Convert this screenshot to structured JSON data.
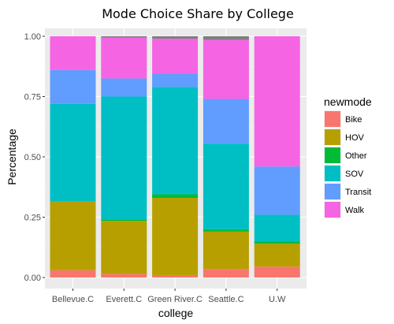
{
  "chart_data": {
    "type": "bar",
    "stacked": true,
    "title": "Mode Choice Share by College",
    "xlabel": "college",
    "ylabel": "Percentage",
    "ylim": [
      0,
      1
    ],
    "yticks": [
      "0.00",
      "0.25",
      "0.50",
      "0.75",
      "1.00"
    ],
    "categories": [
      "Bellevue.C",
      "Everett.C",
      "Green River.C",
      "Seattle.C",
      "U.W"
    ],
    "legend": {
      "title": "newmode",
      "position": "right"
    },
    "grid": true,
    "series": [
      {
        "name": "Bike",
        "color": "#F8766D",
        "values": [
          0.03,
          0.015,
          0.01,
          0.035,
          0.045
        ]
      },
      {
        "name": "HOV",
        "color": "#B79F00",
        "values": [
          0.285,
          0.22,
          0.32,
          0.155,
          0.095
        ]
      },
      {
        "name": "Other",
        "color": "#00BA38",
        "values": [
          0.0,
          0.005,
          0.015,
          0.01,
          0.01
        ]
      },
      {
        "name": "SOV",
        "color": "#00BFC4",
        "values": [
          0.405,
          0.51,
          0.445,
          0.355,
          0.11
        ]
      },
      {
        "name": "Transit",
        "color": "#619CFF",
        "values": [
          0.14,
          0.075,
          0.055,
          0.185,
          0.2
        ]
      },
      {
        "name": "Walk",
        "color": "#F564E3",
        "values": [
          0.14,
          0.17,
          0.145,
          0.245,
          0.54
        ]
      },
      {
        "color": "#7f7f7f",
        "values": [
          0.0,
          0.005,
          0.01,
          0.015,
          0.0
        ]
      }
    ]
  }
}
